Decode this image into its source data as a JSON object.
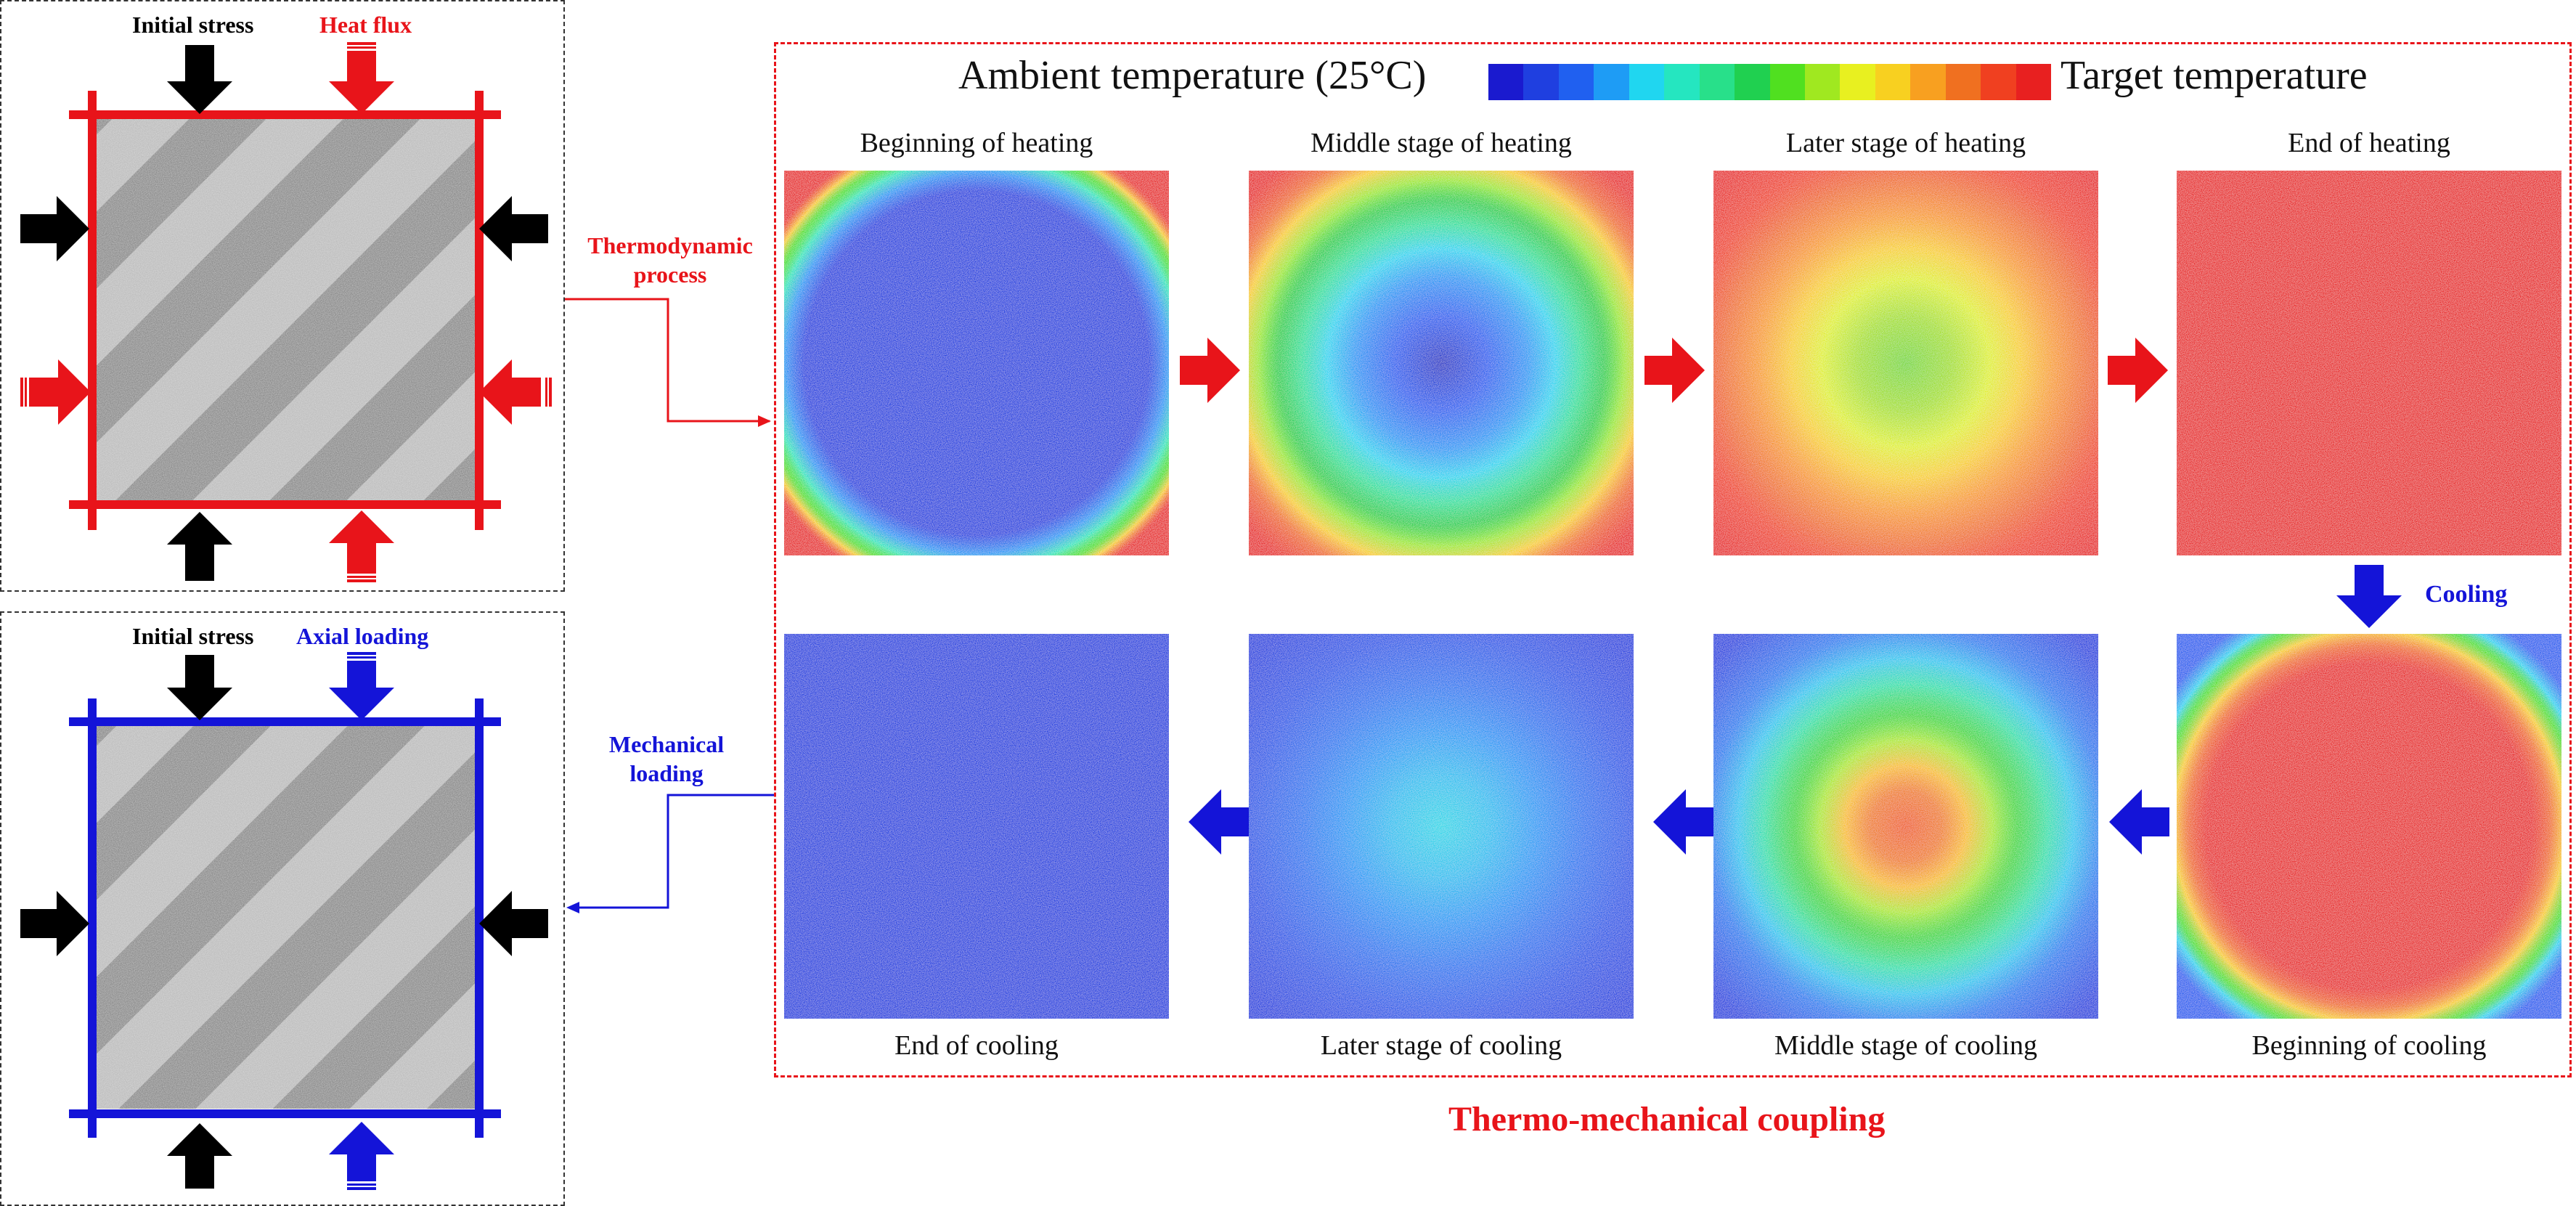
{
  "top_left": {
    "initial_stress": "Initial stress",
    "heat_flux": "Heat flux"
  },
  "bottom_left": {
    "initial_stress": "Initial stress",
    "axial_loading": "Axial loading"
  },
  "connectors": {
    "thermo_line1": "Thermodynamic",
    "thermo_line2": "process",
    "mech_line1": "Mechanical",
    "mech_line2": "loading",
    "cooling": "Cooling"
  },
  "colorbar": {
    "left_label": "Ambient temperature (25°C)",
    "right_label": "Target temperature",
    "colors": [
      "#1a1acf",
      "#1f3fe0",
      "#2060f0",
      "#1e9cf5",
      "#20d6f0",
      "#25e6c0",
      "#28e08a",
      "#20d050",
      "#50e020",
      "#a0e820",
      "#e8f020",
      "#f8d020",
      "#f8a020",
      "#f07020",
      "#f04020",
      "#e82020"
    ]
  },
  "panels_top": [
    {
      "title": "Beginning of heating",
      "stage": "heat-begin"
    },
    {
      "title": "Middle stage of heating",
      "stage": "heat-mid"
    },
    {
      "title": "Later stage of heating",
      "stage": "heat-late"
    },
    {
      "title": "End of heating",
      "stage": "heat-end"
    }
  ],
  "panels_bottom": [
    {
      "title": "End of cooling",
      "stage": "cool-end"
    },
    {
      "title": "Later stage of cooling",
      "stage": "cool-late"
    },
    {
      "title": "Middle stage of cooling",
      "stage": "cool-mid"
    },
    {
      "title": "Beginning of cooling",
      "stage": "cool-begin"
    }
  ],
  "footer": {
    "title": "Thermo-mechanical coupling"
  },
  "colors": {
    "red": "#e8141a",
    "blue": "#1414d8",
    "black": "#000000"
  }
}
